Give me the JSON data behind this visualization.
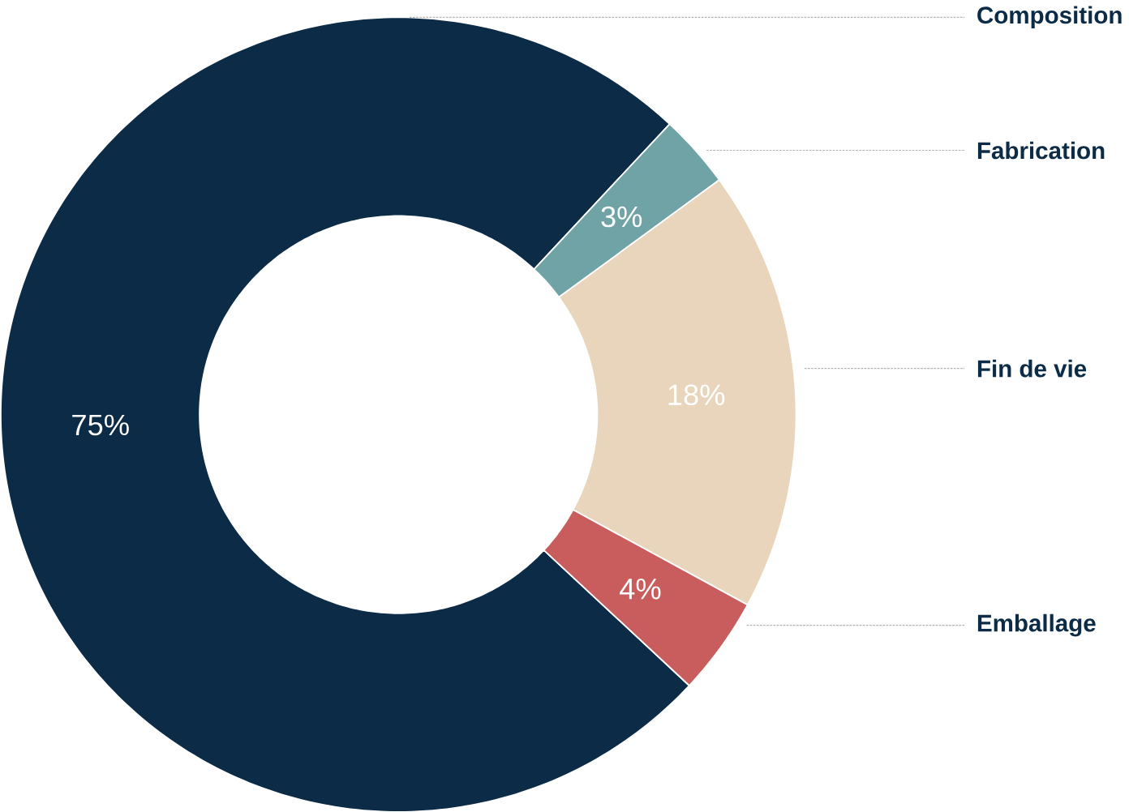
{
  "chart_data": {
    "type": "donut",
    "categories": [
      "Composition",
      "Fabrication",
      "Fin de vie",
      "Emballage"
    ],
    "values": [
      75,
      3,
      18,
      4
    ],
    "value_labels": [
      "75%",
      "3%",
      "18%",
      "4%"
    ],
    "colors": [
      "#0b2b47",
      "#6fa3a5",
      "#e8d5bb",
      "#c95c5c"
    ]
  }
}
